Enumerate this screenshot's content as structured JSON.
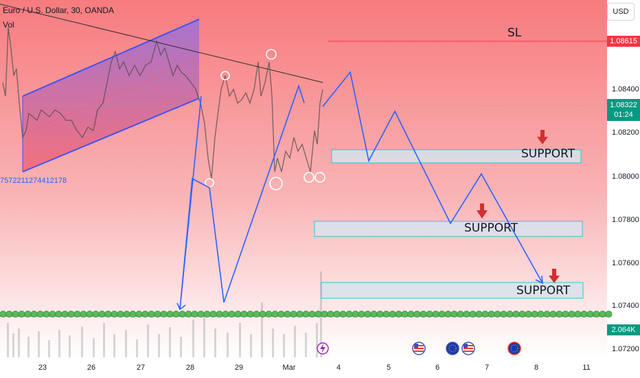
{
  "header": {
    "title": "Euro / U.S. Dollar, 30, OANDA",
    "volume_label": "Vol"
  },
  "overlay_value": "757221127441217​8",
  "currency_button": "USD",
  "price_axis": {
    "ticks": [
      "1.08400",
      "1.08200",
      "1.08000",
      "1.07800",
      "1.07600",
      "1.07400",
      "1.07200"
    ]
  },
  "sl": {
    "label": "SL",
    "price": "1.08615",
    "color": "#f23645"
  },
  "current_price": {
    "price": "1.08322",
    "countdown": "01:24",
    "color": "#089981"
  },
  "volume_value": "2.064K",
  "date_axis": {
    "ticks": [
      "23",
      "26",
      "27",
      "28",
      "29",
      "Mar",
      "4",
      "5",
      "6",
      "7",
      "8",
      "11"
    ]
  },
  "annotations": {
    "support_1": "SUPPORT",
    "support_2": "SUPPORT",
    "support_3": "SUPPORT"
  },
  "event_icons": [
    "lightning-icon",
    "us-flag-icon",
    "eu-flag-icon",
    "us-flag-icon",
    "eu-flag-icon"
  ],
  "colors": {
    "projection": "#2962ff",
    "arrow": "#d32f2f",
    "channel": "#3f51f5",
    "support_zone_border": "#26c6da"
  }
}
